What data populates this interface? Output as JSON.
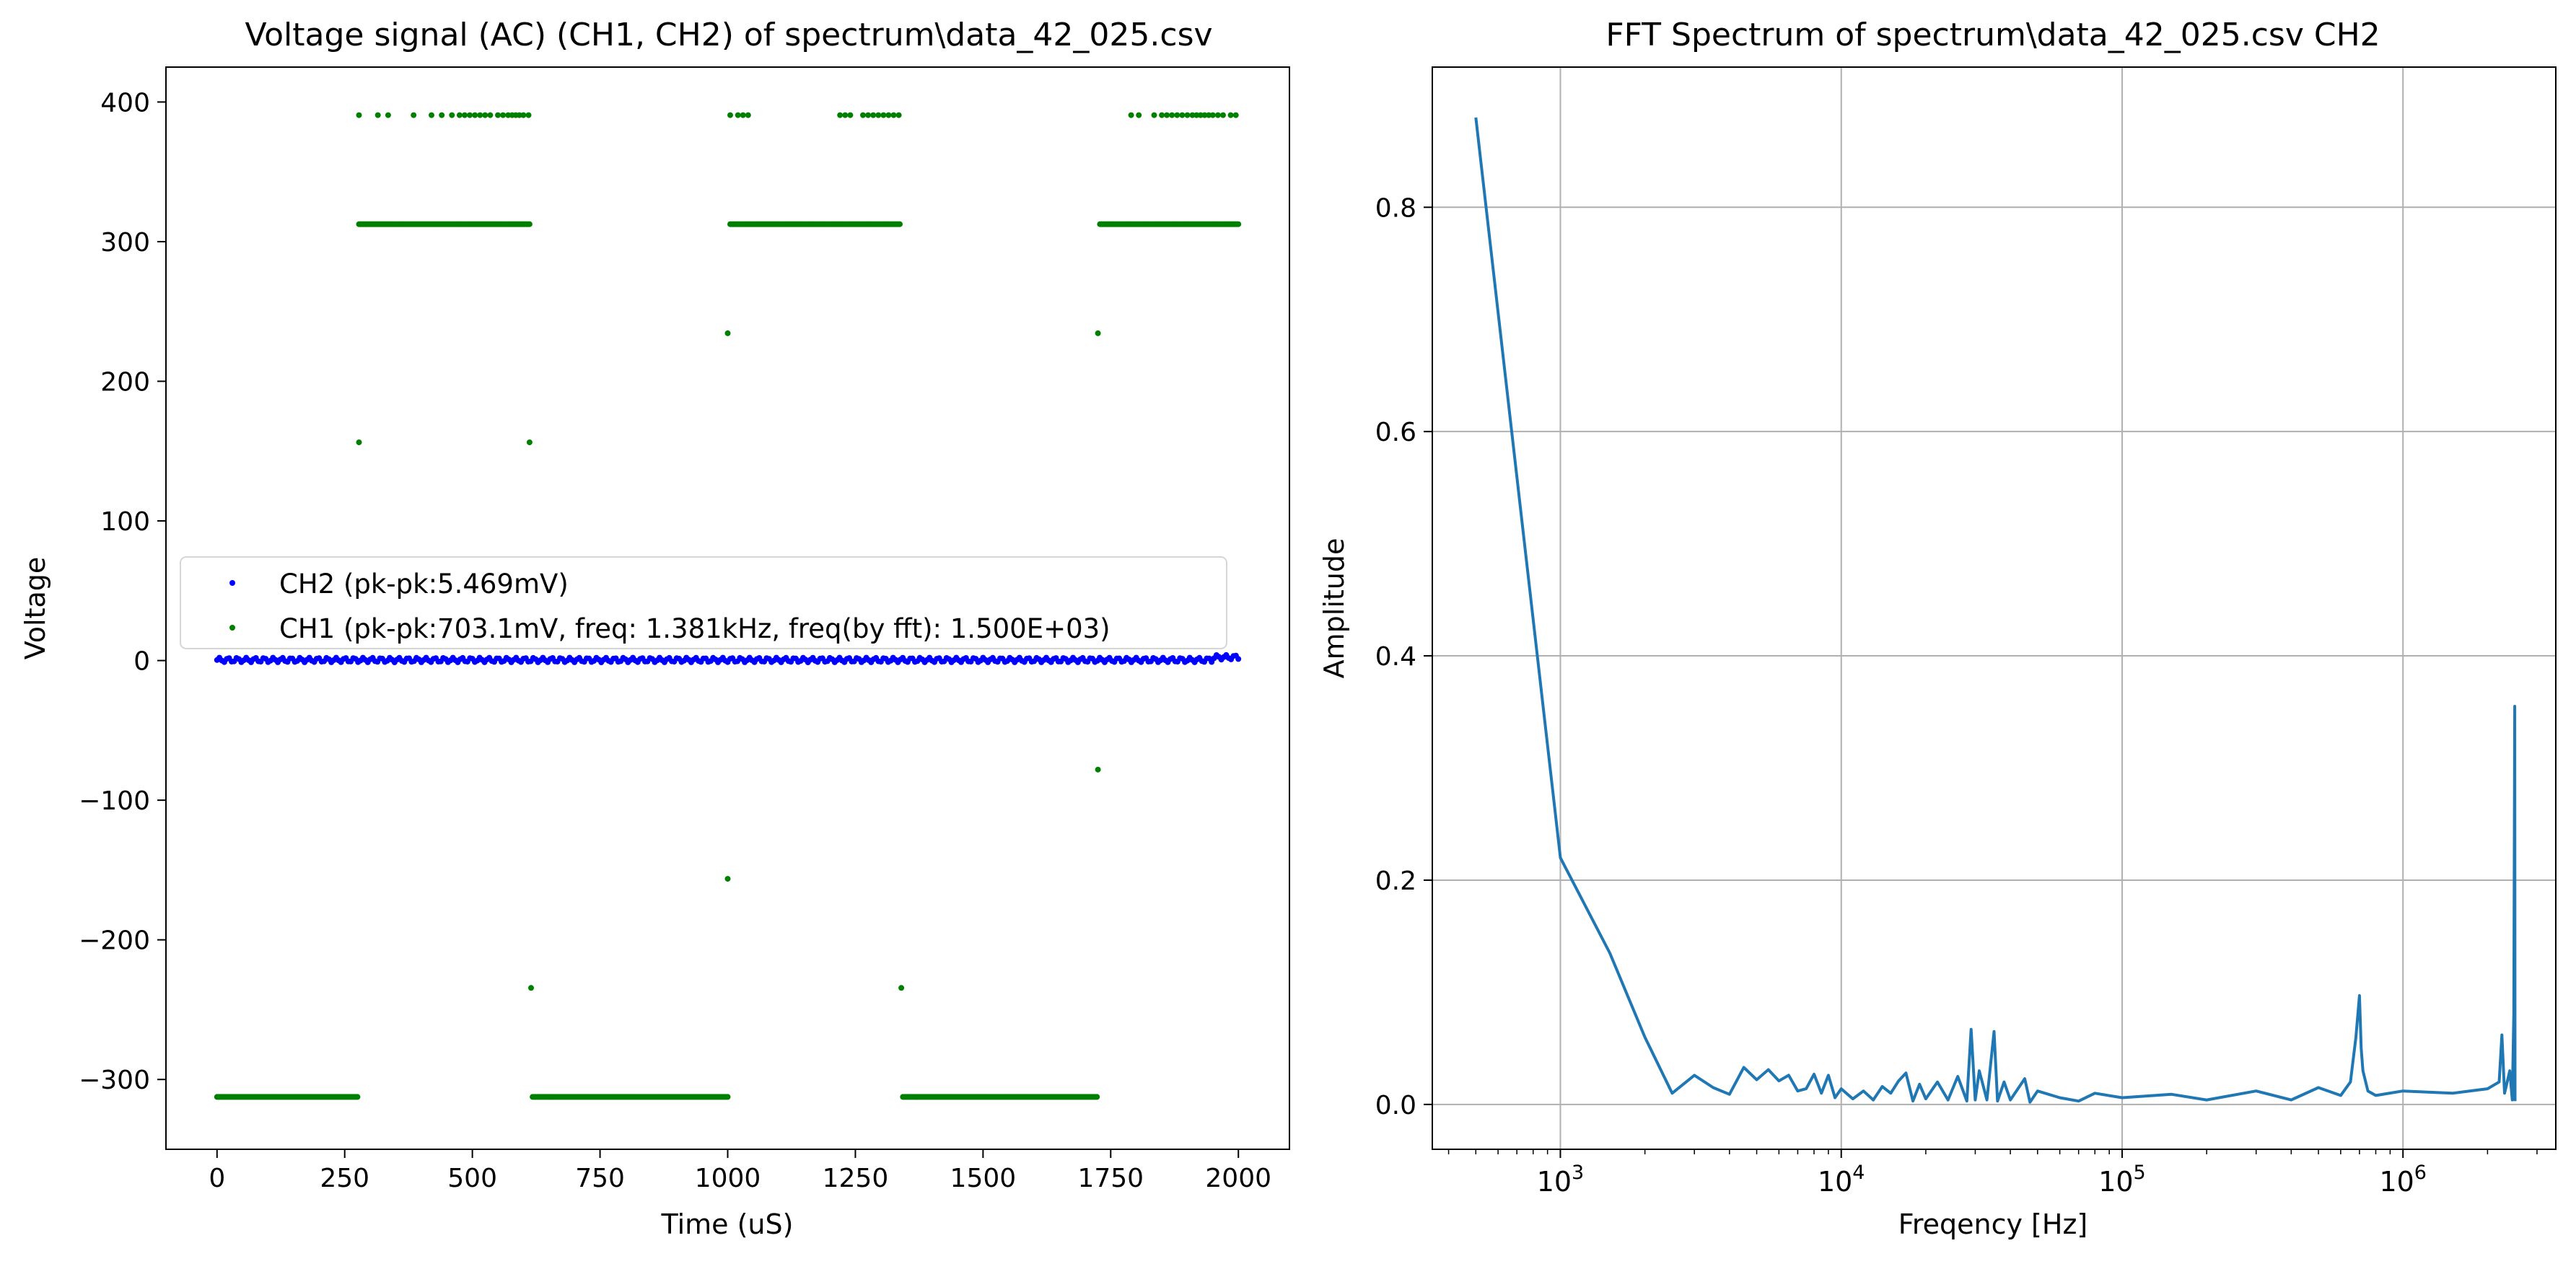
{
  "chart_data": [
    {
      "type": "scatter",
      "title": "Voltage signal (AC) (CH1, CH2) of spectrum\\data_42_025.csv",
      "xlabel": "Time (uS)",
      "ylabel": "Voltage",
      "xlim": [
        -100,
        2100
      ],
      "ylim": [
        -350,
        425
      ],
      "xticks": [
        0,
        250,
        500,
        750,
        1000,
        1250,
        1500,
        1750,
        2000
      ],
      "xtick_labels": [
        "0",
        "250",
        "500",
        "750",
        "1000",
        "1250",
        "1500",
        "1750",
        "2000"
      ],
      "yticks": [
        -300,
        -200,
        -100,
        0,
        100,
        200,
        300,
        400
      ],
      "ytick_labels": [
        "−300",
        "−200",
        "−100",
        "0",
        "100",
        "200",
        "300",
        "400"
      ],
      "grid": false,
      "legend_location": "center-left",
      "series": [
        {
          "name": "CH2 (pk-pk:5.469mV)",
          "color": "#0000ff",
          "mode": "dense-band",
          "x_range": [
            0,
            2000
          ],
          "y_range": [
            -1.5,
            4
          ]
        },
        {
          "name": "CH1 (pk-pk:703.1mV, freq: 1.381kHz, freq(by fft): 1.500E+03)",
          "color": "#008000",
          "segments": [
            {
              "y": -312.5,
              "x_range": [
                0,
                275
              ]
            },
            {
              "y": 312.5,
              "x_range": [
                278,
                612
              ]
            },
            {
              "y": -312.5,
              "x_range": [
                618,
                1000
              ]
            },
            {
              "y": 312.5,
              "x_range": [
                1005,
                1337
              ]
            },
            {
              "y": -312.5,
              "x_range": [
                1343,
                1723
              ]
            },
            {
              "y": 312.5,
              "x_range": [
                1729,
                2000
              ]
            }
          ],
          "points": [
            {
              "x": 278,
              "y": 156.3
            },
            {
              "x": 612,
              "y": 156.3
            },
            {
              "x": 615,
              "y": -234.4
            },
            {
              "x": 1000,
              "y": -156.3
            },
            {
              "x": 1000,
              "y": 234.4
            },
            {
              "x": 1340,
              "y": -234.4
            },
            {
              "x": 1725,
              "y": 234.4
            },
            {
              "x": 1725,
              "y": -78.1
            },
            {
              "x": 278,
              "y": 390.6
            },
            {
              "x": 315,
              "y": 390.6
            },
            {
              "x": 335,
              "y": 390.6
            },
            {
              "x": 385,
              "y": 390.6
            },
            {
              "x": 420,
              "y": 390.6
            },
            {
              "x": 440,
              "y": 390.6
            },
            {
              "x": 460,
              "y": 390.6
            },
            {
              "x": 475,
              "y": 390.6
            },
            {
              "x": 485,
              "y": 390.6
            },
            {
              "x": 495,
              "y": 390.6
            },
            {
              "x": 505,
              "y": 390.6
            },
            {
              "x": 515,
              "y": 390.6
            },
            {
              "x": 525,
              "y": 390.6
            },
            {
              "x": 535,
              "y": 390.6
            },
            {
              "x": 550,
              "y": 390.6
            },
            {
              "x": 560,
              "y": 390.6
            },
            {
              "x": 570,
              "y": 390.6
            },
            {
              "x": 578,
              "y": 390.6
            },
            {
              "x": 585,
              "y": 390.6
            },
            {
              "x": 592,
              "y": 390.6
            },
            {
              "x": 600,
              "y": 390.6
            },
            {
              "x": 610,
              "y": 390.6
            },
            {
              "x": 1005,
              "y": 390.6
            },
            {
              "x": 1020,
              "y": 390.6
            },
            {
              "x": 1030,
              "y": 390.6
            },
            {
              "x": 1040,
              "y": 390.6
            },
            {
              "x": 1220,
              "y": 390.6
            },
            {
              "x": 1230,
              "y": 390.6
            },
            {
              "x": 1240,
              "y": 390.6
            },
            {
              "x": 1265,
              "y": 390.6
            },
            {
              "x": 1275,
              "y": 390.6
            },
            {
              "x": 1285,
              "y": 390.6
            },
            {
              "x": 1295,
              "y": 390.6
            },
            {
              "x": 1305,
              "y": 390.6
            },
            {
              "x": 1315,
              "y": 390.6
            },
            {
              "x": 1325,
              "y": 390.6
            },
            {
              "x": 1335,
              "y": 390.6
            },
            {
              "x": 1790,
              "y": 390.6
            },
            {
              "x": 1805,
              "y": 390.6
            },
            {
              "x": 1835,
              "y": 390.6
            },
            {
              "x": 1850,
              "y": 390.6
            },
            {
              "x": 1860,
              "y": 390.6
            },
            {
              "x": 1870,
              "y": 390.6
            },
            {
              "x": 1880,
              "y": 390.6
            },
            {
              "x": 1890,
              "y": 390.6
            },
            {
              "x": 1900,
              "y": 390.6
            },
            {
              "x": 1910,
              "y": 390.6
            },
            {
              "x": 1918,
              "y": 390.6
            },
            {
              "x": 1926,
              "y": 390.6
            },
            {
              "x": 1934,
              "y": 390.6
            },
            {
              "x": 1942,
              "y": 390.6
            },
            {
              "x": 1950,
              "y": 390.6
            },
            {
              "x": 1960,
              "y": 390.6
            },
            {
              "x": 1970,
              "y": 390.6
            },
            {
              "x": 1985,
              "y": 390.6
            },
            {
              "x": 1995,
              "y": 390.6
            }
          ]
        }
      ]
    },
    {
      "type": "line",
      "title": "FFT Spectrum of spectrum\\data_42_025.csv CH2",
      "xlabel": "Freqency [Hz]",
      "ylabel": "Amplitude",
      "x_scale": "log",
      "xlim": [
        350,
        3500000
      ],
      "ylim": [
        -0.04,
        0.925
      ],
      "xticks": [
        1000,
        10000,
        100000,
        1000000
      ],
      "xtick_labels": [
        {
          "base": "10",
          "exp": "3"
        },
        {
          "base": "10",
          "exp": "4"
        },
        {
          "base": "10",
          "exp": "5"
        },
        {
          "base": "10",
          "exp": "6"
        }
      ],
      "yticks": [
        0.0,
        0.2,
        0.4,
        0.6,
        0.8
      ],
      "ytick_labels": [
        "0.0",
        "0.2",
        "0.4",
        "0.6",
        "0.8"
      ],
      "grid": true,
      "series": [
        {
          "color": "#1f77b4",
          "x": [
            500,
            1000,
            1500,
            2000,
            2500,
            3000,
            3500,
            4000,
            4500,
            5000,
            5500,
            6000,
            6500,
            7000,
            7500,
            8000,
            8500,
            9000,
            9500,
            10000,
            11000,
            12000,
            13000,
            14000,
            15000,
            16000,
            17000,
            18000,
            19000,
            20000,
            22000,
            24000,
            26000,
            28000,
            29000,
            30000,
            31000,
            33000,
            35000,
            36000,
            38000,
            40000,
            45000,
            47000,
            50000,
            60000,
            70000,
            80000,
            100000,
            150000,
            200000,
            300000,
            400000,
            500000,
            600000,
            650000,
            680000,
            700000,
            710000,
            720000,
            750000,
            800000,
            1000000,
            1500000,
            2000000,
            2200000,
            2250000,
            2300000,
            2400000,
            2450000,
            2480000,
            2500000,
            2505000
          ],
          "y": [
            0.88,
            0.22,
            0.135,
            0.06,
            0.01,
            0.026,
            0.015,
            0.009,
            0.033,
            0.022,
            0.031,
            0.021,
            0.026,
            0.012,
            0.014,
            0.027,
            0.01,
            0.026,
            0.006,
            0.014,
            0.005,
            0.012,
            0.004,
            0.016,
            0.01,
            0.021,
            0.028,
            0.003,
            0.018,
            0.005,
            0.02,
            0.004,
            0.025,
            0.003,
            0.067,
            0.004,
            0.03,
            0.004,
            0.065,
            0.003,
            0.02,
            0.004,
            0.023,
            0.002,
            0.012,
            0.006,
            0.003,
            0.01,
            0.006,
            0.009,
            0.004,
            0.012,
            0.004,
            0.015,
            0.008,
            0.02,
            0.06,
            0.097,
            0.05,
            0.03,
            0.012,
            0.008,
            0.012,
            0.01,
            0.014,
            0.02,
            0.062,
            0.01,
            0.03,
            0.004,
            0.08,
            0.355,
            0.003
          ]
        }
      ]
    }
  ]
}
